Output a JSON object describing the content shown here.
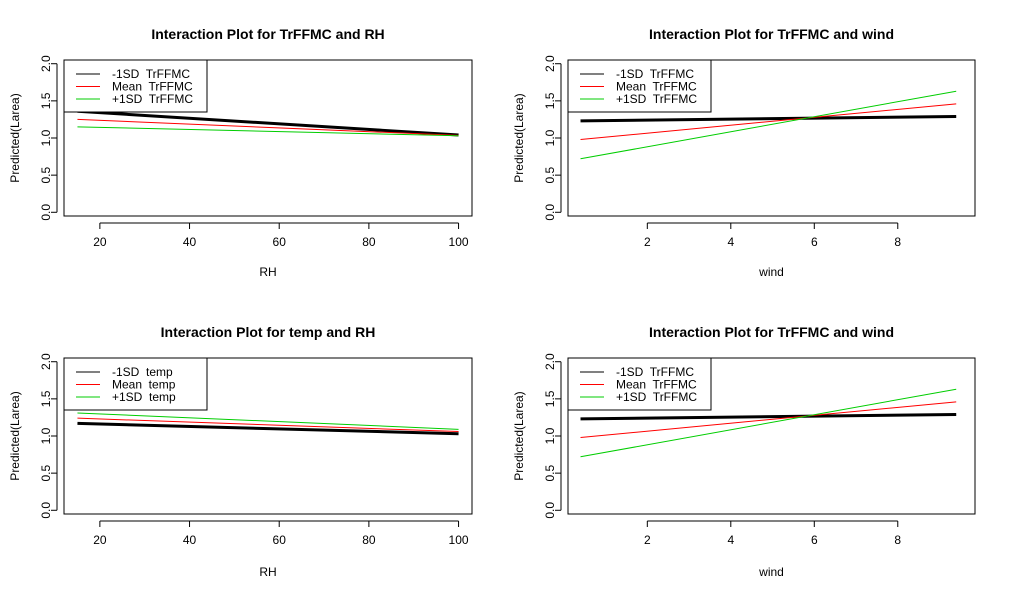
{
  "chart_data": [
    {
      "type": "line",
      "title": "Interaction Plot for TrFFMC  and RH",
      "xlabel": "RH",
      "ylabel": "Predicted(Larea)",
      "xlim": [
        12,
        103
      ],
      "ylim": [
        -0.05,
        2.05
      ],
      "x_ticks": [
        20,
        40,
        60,
        80,
        100
      ],
      "y_ticks": [
        0.0,
        0.5,
        1.0,
        1.5,
        2.0
      ],
      "legend_position": "top-left",
      "x": [
        15,
        100
      ],
      "series": [
        {
          "name": "-1SD  TrFFMC",
          "color": "#000000",
          "width": 3,
          "values": [
            1.36,
            1.04
          ]
        },
        {
          "name": "Mean  TrFFMC",
          "color": "#ff0000",
          "width": 1,
          "values": [
            1.25,
            1.035
          ]
        },
        {
          "name": "+1SD  TrFFMC",
          "color": "#00cd00",
          "width": 1,
          "values": [
            1.15,
            1.03
          ]
        }
      ]
    },
    {
      "type": "line",
      "title": "Interaction Plot for TrFFMC  and wind",
      "xlabel": "wind",
      "ylabel": "Predicted(Larea)",
      "xlim": [
        0.1,
        9.85
      ],
      "ylim": [
        -0.05,
        2.05
      ],
      "x_ticks": [
        2,
        4,
        6,
        8
      ],
      "y_ticks": [
        0.0,
        0.5,
        1.0,
        1.5,
        2.0
      ],
      "legend_position": "top-left",
      "x": [
        0.4,
        9.4
      ],
      "series": [
        {
          "name": "-1SD  TrFFMC",
          "color": "#000000",
          "width": 3,
          "values": [
            1.23,
            1.29
          ]
        },
        {
          "name": "Mean  TrFFMC",
          "color": "#ff0000",
          "width": 1,
          "values": [
            0.98,
            1.46
          ]
        },
        {
          "name": "+1SD  TrFFMC",
          "color": "#00cd00",
          "width": 1,
          "values": [
            0.72,
            1.63
          ]
        }
      ]
    },
    {
      "type": "line",
      "title": "Interaction Plot for temp  and RH",
      "xlabel": "RH",
      "ylabel": "Predicted(Larea)",
      "xlim": [
        12,
        103
      ],
      "ylim": [
        -0.05,
        2.05
      ],
      "x_ticks": [
        20,
        40,
        60,
        80,
        100
      ],
      "y_ticks": [
        0.0,
        0.5,
        1.0,
        1.5,
        2.0
      ],
      "legend_position": "top-left",
      "x": [
        15,
        100
      ],
      "series": [
        {
          "name": "-1SD  temp",
          "color": "#000000",
          "width": 3,
          "values": [
            1.17,
            1.03
          ]
        },
        {
          "name": "Mean  temp",
          "color": "#ff0000",
          "width": 1,
          "values": [
            1.24,
            1.06
          ]
        },
        {
          "name": "+1SD  temp",
          "color": "#00cd00",
          "width": 1,
          "values": [
            1.31,
            1.09
          ]
        }
      ]
    },
    {
      "type": "line",
      "title": "Interaction Plot for TrFFMC  and wind",
      "xlabel": "wind",
      "ylabel": "Predicted(Larea)",
      "xlim": [
        0.1,
        9.85
      ],
      "ylim": [
        -0.05,
        2.05
      ],
      "x_ticks": [
        2,
        4,
        6,
        8
      ],
      "y_ticks": [
        0.0,
        0.5,
        1.0,
        1.5,
        2.0
      ],
      "legend_position": "top-left",
      "x": [
        0.4,
        9.4
      ],
      "series": [
        {
          "name": "-1SD  TrFFMC",
          "color": "#000000",
          "width": 3,
          "values": [
            1.23,
            1.29
          ]
        },
        {
          "name": "Mean  TrFFMC",
          "color": "#ff0000",
          "width": 1,
          "values": [
            0.98,
            1.46
          ]
        },
        {
          "name": "+1SD  TrFFMC",
          "color": "#00cd00",
          "width": 1,
          "values": [
            0.72,
            1.63
          ]
        }
      ]
    }
  ]
}
